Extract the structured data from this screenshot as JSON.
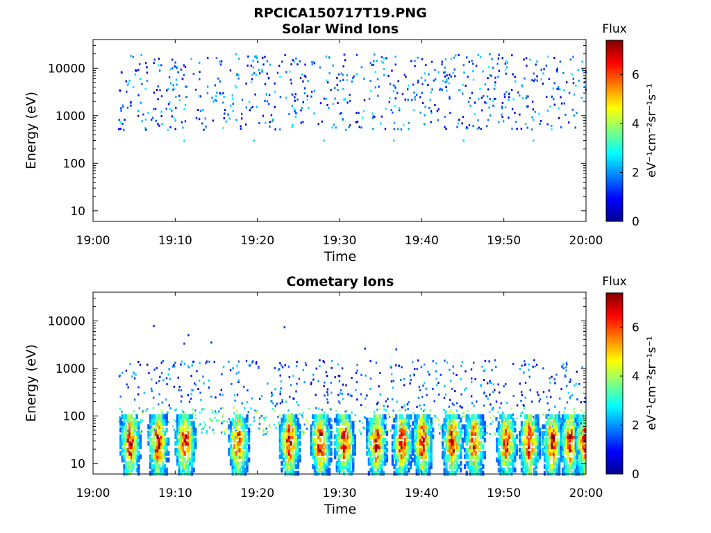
{
  "page": {
    "title": "RPCICA150717T19.PNG"
  },
  "colormap": {
    "name": "jet",
    "stops": [
      "#00008f",
      "#0000ff",
      "#0080ff",
      "#00ffff",
      "#80ff80",
      "#ffff00",
      "#ff8000",
      "#ff0000",
      "#800000"
    ]
  },
  "chart_data": [
    {
      "type": "heatmap",
      "title": "Solar Wind Ions",
      "xlabel": "Time",
      "ylabel": "Energy (eV)",
      "yscale": "log",
      "xlim": [
        "19:00",
        "20:00"
      ],
      "ylim": [
        6,
        40000
      ],
      "xticks": [
        "19:00",
        "19:10",
        "19:20",
        "19:30",
        "19:40",
        "19:50",
        "20:00"
      ],
      "yticks": [
        "10",
        "100",
        "1000",
        "10000"
      ],
      "yticks_values": [
        10,
        100,
        1000,
        10000
      ],
      "colorbar": {
        "label": "Flux",
        "units": "eV⁻¹cm⁻²sr⁻¹s⁻¹",
        "range": [
          0,
          7.4
        ],
        "ticks": [
          "0",
          "2",
          "4",
          "6"
        ],
        "tick_values": [
          0,
          2,
          4,
          6
        ]
      },
      "data_extent": {
        "time_start_min": 3,
        "time_end_min": 60
      },
      "features": [
        {
          "kind": "scatter_band",
          "energy_range_eV": [
            500,
            20000
          ],
          "flux_range": [
            0.5,
            2.8
          ],
          "density": "sparse"
        },
        {
          "kind": "isolated_points",
          "energy_eV": 300,
          "flux": 2.5
        }
      ]
    },
    {
      "type": "heatmap",
      "title": "Cometary Ions",
      "xlabel": "Time",
      "ylabel": "Energy (eV)",
      "yscale": "log",
      "xlim": [
        "19:00",
        "20:00"
      ],
      "ylim": [
        6,
        40000
      ],
      "xticks": [
        "19:00",
        "19:10",
        "19:20",
        "19:30",
        "19:40",
        "19:50",
        "20:00"
      ],
      "yticks": [
        "10",
        "100",
        "1000",
        "10000"
      ],
      "yticks_values": [
        10,
        100,
        1000,
        10000
      ],
      "colorbar": {
        "label": "Flux",
        "units": "eV⁻¹cm⁻²sr⁻¹s⁻¹",
        "range": [
          0,
          7.4
        ],
        "ticks": [
          "0",
          "2",
          "4",
          "6"
        ],
        "tick_values": [
          0,
          2,
          4,
          6
        ]
      },
      "data_extent": {
        "time_start_min": 3,
        "time_end_min": 60
      },
      "features": [
        {
          "kind": "scatter_band",
          "energy_range_eV": [
            150,
            1500
          ],
          "flux_range": [
            0.5,
            2.5
          ],
          "density": "sparse"
        },
        {
          "kind": "scatter_band",
          "energy_range_eV": [
            40,
            150
          ],
          "flux_range": [
            1.5,
            4.5
          ],
          "density": "medium"
        },
        {
          "kind": "bursts",
          "energy_range_eV": [
            6,
            100
          ],
          "peak_flux": 7.4,
          "times_min": [
            4.4,
            7.8,
            11.1,
            17.6,
            23.8,
            27.6,
            30.5,
            34.4,
            37.5,
            40.0,
            43.6,
            46.3,
            50.2,
            53.0,
            55.8,
            58.0,
            59.8
          ]
        },
        {
          "kind": "isolated_points",
          "energy_eV": [
            7800,
            5000,
            3500,
            3300,
            7300,
            2600,
            2500
          ],
          "times_min": [
            7.3,
            11.5,
            14.3,
            11.0,
            23.2,
            33.0,
            36.8
          ]
        }
      ]
    }
  ]
}
